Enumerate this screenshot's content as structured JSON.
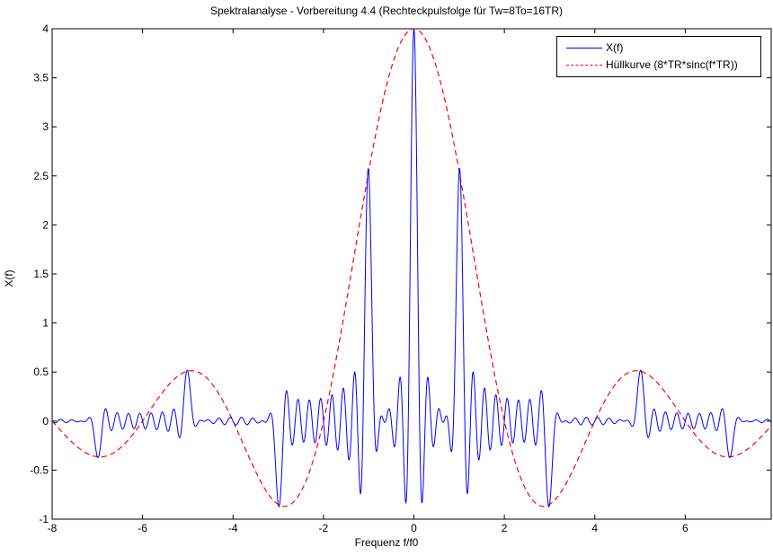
{
  "chart_data": {
    "type": "line",
    "title": "Spektralanalyse - Vorbereitung 4.4 (Rechteckpulsfolge für Tw=8To=16TR)",
    "xlabel": "Frequenz f/f0",
    "ylabel": "X(f)",
    "xlim": [
      -8,
      7.9
    ],
    "ylim": [
      -1,
      4
    ],
    "xticks": [
      "-8",
      "-6",
      "-4",
      "-2",
      "0",
      "2",
      "4",
      "6"
    ],
    "yticks": [
      "-1",
      "-0.5",
      "0",
      "0.5",
      "1",
      "1.5",
      "2",
      "2.5",
      "3",
      "3.5",
      "4"
    ],
    "grid": true,
    "legend_position": "top-right",
    "series": [
      {
        "name": "X(f)",
        "color": "#0000ff",
        "style": "solid",
        "description_points": [
          {
            "x": 0,
            "y": 4.0
          },
          {
            "x": 1,
            "y": 2.55
          },
          {
            "x": -1,
            "y": 2.55
          },
          {
            "x": 3,
            "y": -0.85
          },
          {
            "x": -3,
            "y": -0.85
          },
          {
            "x": 5,
            "y": 0.51
          },
          {
            "x": -5,
            "y": 0.51
          },
          {
            "x": 7,
            "y": -0.36
          },
          {
            "x": -7,
            "y": -0.36
          }
        ]
      },
      {
        "name": "Hüllkurve (8*TR*sinc(f*TR))",
        "color": "#ff0000",
        "style": "dashed"
      }
    ]
  }
}
